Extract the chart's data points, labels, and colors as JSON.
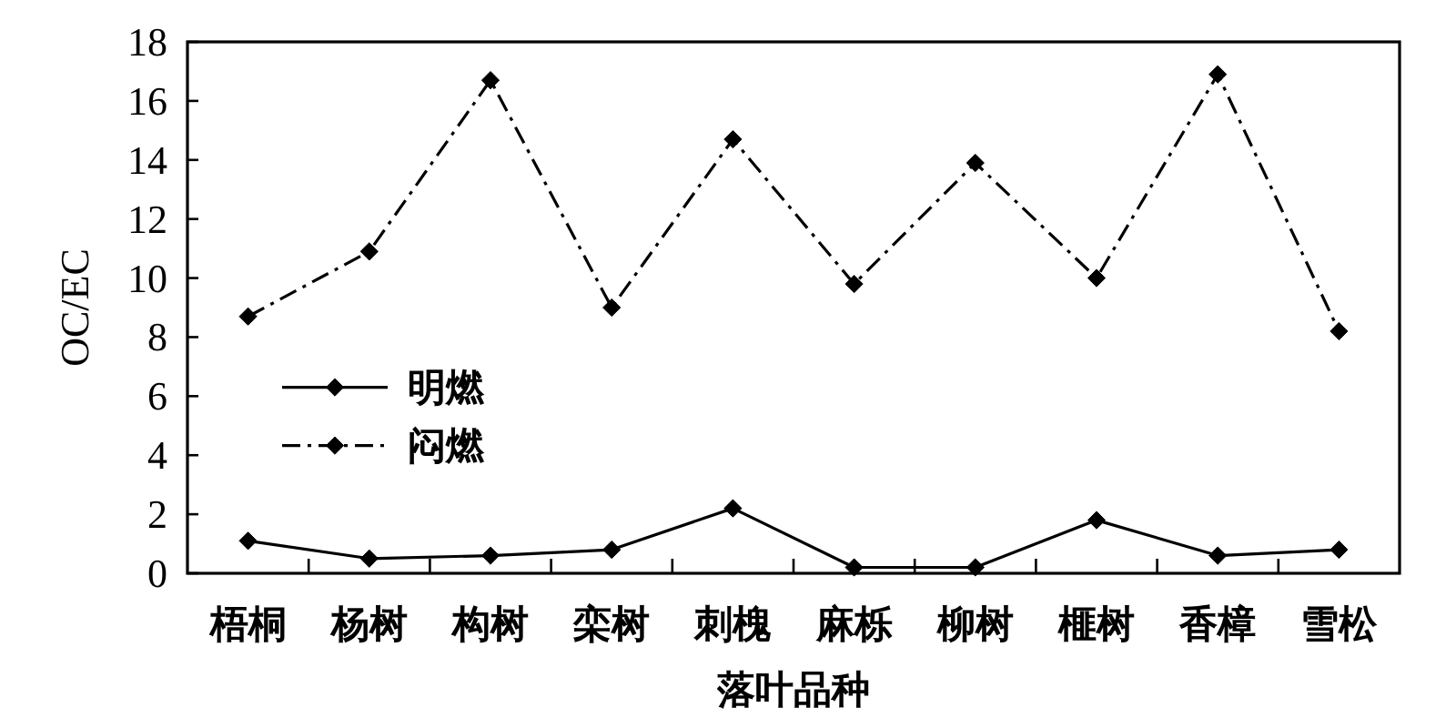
{
  "chart_data": {
    "type": "line",
    "xlabel": "落叶品种",
    "ylabel": "OC/EC",
    "categories": [
      "梧桐",
      "杨树",
      "构树",
      "栾树",
      "刺槐",
      "麻栎",
      "柳树",
      "榧树",
      "香樟",
      "雪松"
    ],
    "series": [
      {
        "name": "明燃",
        "color": "#000000",
        "line_style": "solid",
        "values": [
          1.1,
          0.5,
          0.6,
          0.8,
          2.2,
          0.2,
          0.2,
          1.8,
          0.6,
          0.8
        ]
      },
      {
        "name": "闷燃",
        "color": "#000000",
        "line_style": "dashdot",
        "values": [
          8.7,
          10.9,
          16.7,
          9.0,
          14.7,
          9.8,
          13.9,
          10.0,
          16.9,
          8.2
        ]
      }
    ],
    "ylim": [
      0,
      18
    ],
    "yticks": [
      0,
      2,
      4,
      6,
      8,
      10,
      12,
      14,
      16,
      18
    ],
    "marker": "diamond",
    "legend": "left"
  }
}
